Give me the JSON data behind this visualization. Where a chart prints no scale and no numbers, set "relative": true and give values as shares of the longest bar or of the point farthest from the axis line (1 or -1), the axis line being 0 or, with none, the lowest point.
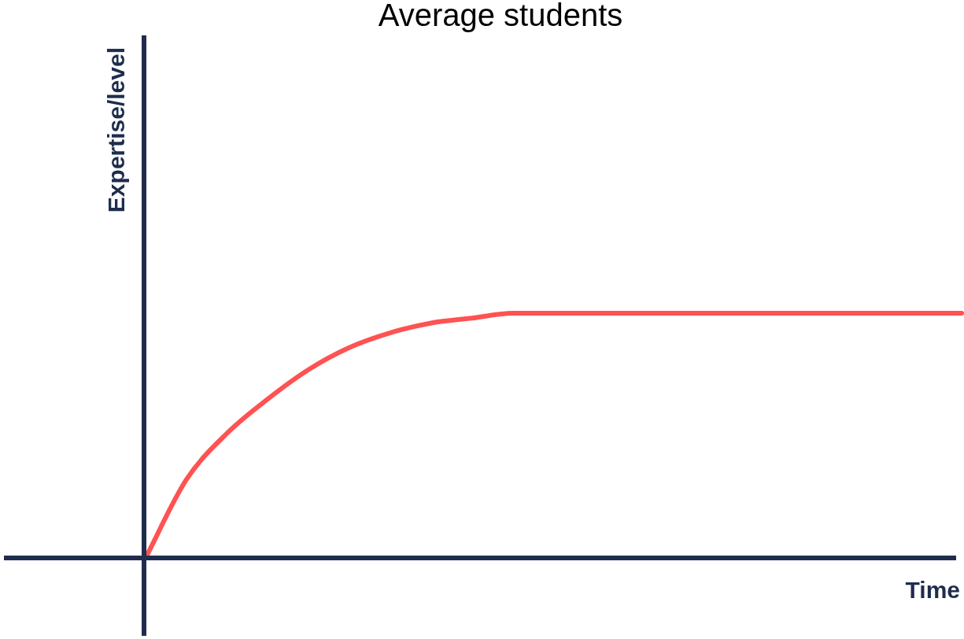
{
  "chart_data": {
    "type": "line",
    "title": "Average students",
    "xlabel": "Time",
    "ylabel": "Expertise/level",
    "relative": true,
    "marker": "none",
    "line_style": "solid",
    "categories": [
      null,
      null,
      null,
      null,
      null,
      null,
      null,
      null,
      null,
      null,
      null,
      null,
      null,
      null,
      null,
      null,
      null,
      null,
      null,
      null,
      null
    ],
    "series": [
      {
        "color": "#ff5252",
        "values": [
          0,
          0.32,
          0.51,
          0.65,
          0.77,
          0.86,
          0.92,
          0.96,
          0.98,
          1,
          1,
          1,
          1,
          1,
          1,
          1,
          1,
          1,
          1,
          1,
          1
        ]
      }
    ]
  }
}
